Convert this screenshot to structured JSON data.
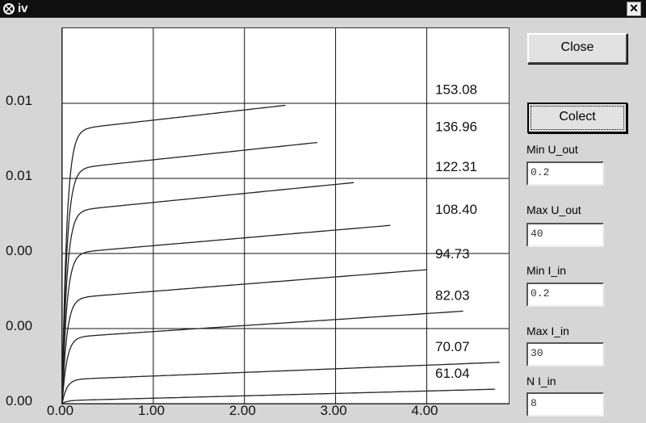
{
  "window": {
    "title": "iv",
    "close_glyph": "✕"
  },
  "chart_data": {
    "type": "line",
    "title": "",
    "xlabel": "",
    "ylabel": "",
    "x_ticks": [
      "0.00",
      "1.00",
      "2.00",
      "3.00",
      "4.00"
    ],
    "y_ticks": [
      "0.00",
      "0.00",
      "0.00",
      "0.01",
      "0.01"
    ],
    "xlim": [
      0,
      4.9
    ],
    "ylim": [
      0,
      0.0125
    ],
    "grid": true,
    "series": [
      {
        "name": "61.04",
        "sat": 0.0001,
        "xend": 4.75,
        "slope": 8e-05
      },
      {
        "name": "70.07",
        "sat": 0.0008,
        "xend": 4.8,
        "slope": 0.00012
      },
      {
        "name": "82.03",
        "sat": 0.0022,
        "xend": 4.4,
        "slope": 0.0002
      },
      {
        "name": "94.73",
        "sat": 0.0035,
        "xend": 4.0,
        "slope": 0.00024
      },
      {
        "name": "108.40",
        "sat": 0.005,
        "xend": 3.6,
        "slope": 0.00026
      },
      {
        "name": "122.31",
        "sat": 0.0064,
        "xend": 3.2,
        "slope": 0.0003
      },
      {
        "name": "136.96",
        "sat": 0.0078,
        "xend": 2.8,
        "slope": 0.00032
      },
      {
        "name": "153.08",
        "sat": 0.0091,
        "xend": 2.45,
        "slope": 0.00034
      }
    ],
    "colors": {
      "curve": "#222222",
      "grid": "#111111",
      "background": "#ffffff"
    }
  },
  "buttons": {
    "close": "Close",
    "collect": "Colect"
  },
  "fields": [
    {
      "label": "Min U_out",
      "value": "0.2"
    },
    {
      "label": "Max U_out",
      "value": "40"
    },
    {
      "label": "Min I_in",
      "value": "0.2"
    },
    {
      "label": "Max I_in",
      "value": "30"
    },
    {
      "label": "N I_in",
      "value": "8"
    }
  ]
}
